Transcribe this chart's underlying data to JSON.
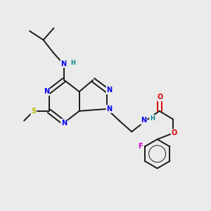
{
  "bg_color": "#ebebeb",
  "bond_color": "#1a1a1a",
  "bond_width": 1.4,
  "atom_colors": {
    "N": "#0000ee",
    "O": "#dd0000",
    "S": "#bbbb00",
    "F": "#cc00cc",
    "H_label": "#008888",
    "C": "#1a1a1a"
  },
  "font_size": 7.0,
  "font_size_h": 6.0
}
